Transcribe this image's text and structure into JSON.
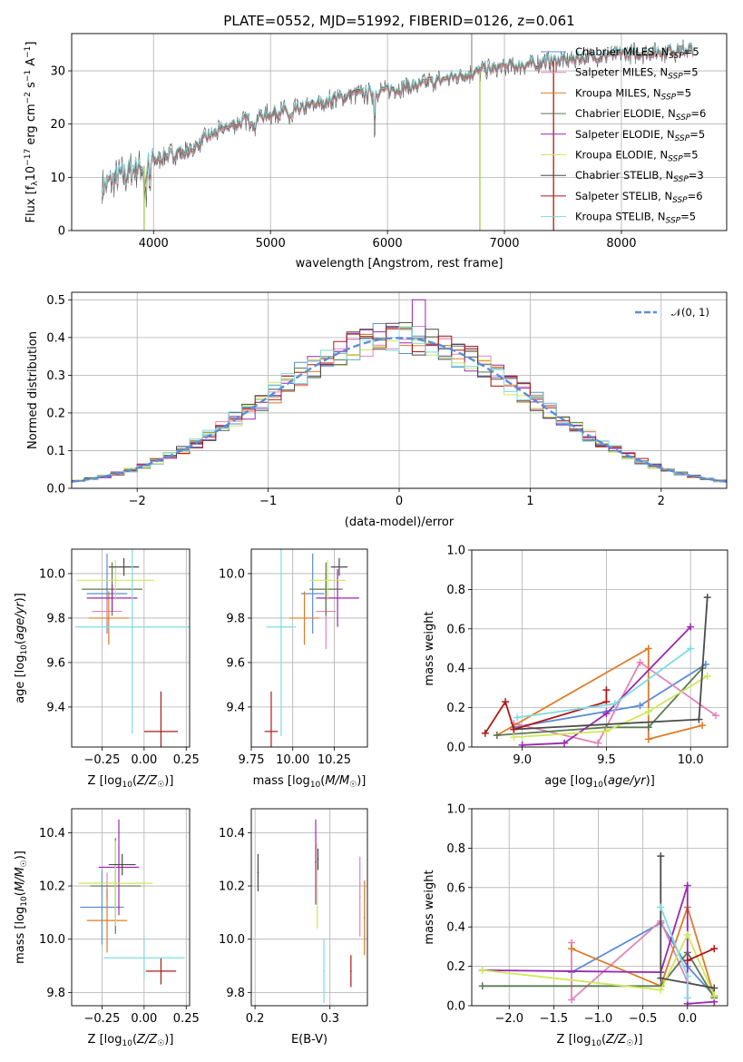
{
  "chart_data": [
    {
      "panel": "spectrum",
      "type": "line",
      "title": "PLATE=0552, MJD=51992, FIBERID=0126, z=0.061",
      "xlabel": "wavelength [Angstrom, rest frame]",
      "ylabel": "Flux [f_λ10^-17 erg cm^-2 s^-1 A^-1]",
      "xlim": [
        3300,
        8900
      ],
      "ylim": [
        0,
        37
      ],
      "xticks": [
        4000,
        5000,
        6000,
        7000,
        8000
      ],
      "yticks": [
        0,
        10,
        20,
        30
      ],
      "legend_position": "lower-right",
      "legend": [
        {
          "label": "Chabrier MILES, N",
          "sub": "SSP",
          "tail": "=5",
          "color": "#5b8dd6"
        },
        {
          "label": "Salpeter MILES, N",
          "sub": "SSP",
          "tail": "=5",
          "color": "#e383b9"
        },
        {
          "label": "Kroupa MILES, N",
          "sub": "SSP",
          "tail": "=5",
          "color": "#df7b27"
        },
        {
          "label": "Chabrier ELODIE, N",
          "sub": "SSP",
          "tail": "=6",
          "color": "#5a7a52"
        },
        {
          "label": "Salpeter ELODIE, N",
          "sub": "SSP",
          "tail": "=5",
          "color": "#9b27b3"
        },
        {
          "label": "Kroupa ELODIE, N",
          "sub": "SSP",
          "tail": "=5",
          "color": "#cfe85a"
        },
        {
          "label": "Chabrier STELIB, N",
          "sub": "SSP",
          "tail": "=3",
          "color": "#4a4a4a"
        },
        {
          "label": "Salpeter STELIB, N",
          "sub": "SSP",
          "tail": "=6",
          "color": "#b01818"
        },
        {
          "label": "Kroupa STELIB, N",
          "sub": "SSP",
          "tail": "=5",
          "color": "#7fdbe0"
        }
      ],
      "continuum": [
        [
          3560,
          8
        ],
        [
          3700,
          10
        ],
        [
          3900,
          12
        ],
        [
          4100,
          14
        ],
        [
          4300,
          15
        ],
        [
          4500,
          18
        ],
        [
          4700,
          20
        ],
        [
          5000,
          22
        ],
        [
          5300,
          23
        ],
        [
          5600,
          25
        ],
        [
          5900,
          26
        ],
        [
          6200,
          27
        ],
        [
          6500,
          28.5
        ],
        [
          6800,
          30
        ],
        [
          7100,
          31
        ],
        [
          7500,
          32
        ],
        [
          7900,
          33
        ],
        [
          8300,
          33.5
        ],
        [
          8600,
          34
        ]
      ],
      "spikes": [
        {
          "x": 3920,
          "y": 0,
          "color": "#a6c94a"
        },
        {
          "x": 6790,
          "y": 0,
          "color": "#a6c94a"
        },
        {
          "x": 7420,
          "y": 0,
          "color": "#b01818"
        },
        {
          "x": 6720,
          "y": 37,
          "color": "#9a9a9a"
        }
      ]
    },
    {
      "panel": "residuals",
      "type": "histogram",
      "xlabel": "(data-model)/error",
      "ylabel": "Normed distribution",
      "xlim": [
        -2.5,
        2.5
      ],
      "ylim": [
        0,
        0.52
      ],
      "xticks": [
        -2,
        -1,
        0,
        1,
        2
      ],
      "yticks": [
        0.0,
        0.1,
        0.2,
        0.3,
        0.4,
        0.5
      ],
      "gaussian_label": "𝒩(0, 1)",
      "gaussian_color": "#5b8dd6",
      "bin_width": 0.1,
      "max_bin": 0.5
    },
    {
      "panel": "age-vs-Z",
      "type": "errorbar",
      "xlabel": "Z [log10(Z/Z☉)]",
      "ylabel": "age [log10(age/yr)]",
      "xlim": [
        -0.43,
        0.27
      ],
      "ylim": [
        9.22,
        10.11
      ],
      "xticks": [
        -0.25,
        0.0,
        0.25
      ],
      "yticks": [
        9.4,
        9.6,
        9.8,
        10.0
      ],
      "points": [
        {
          "x": -0.22,
          "xerr": 0.12,
          "y": 9.91,
          "yerr": 0.18,
          "color": "#5b8dd6"
        },
        {
          "x": -0.22,
          "xerr": 0.09,
          "y": 9.83,
          "yerr": 0.05,
          "color": "#e383b9"
        },
        {
          "x": -0.21,
          "xerr": 0.12,
          "y": 9.8,
          "yerr": 0.12,
          "color": "#df7b27"
        },
        {
          "x": -0.19,
          "xerr": 0.18,
          "y": 9.93,
          "yerr": 0.12,
          "color": "#5a7a52"
        },
        {
          "x": -0.19,
          "xerr": 0.15,
          "y": 9.89,
          "yerr": 0.06,
          "color": "#9b27b3"
        },
        {
          "x": -0.17,
          "xerr": 0.23,
          "y": 9.97,
          "yerr": 0.09,
          "color": "#cfe85a"
        },
        {
          "x": -0.12,
          "xerr": 0.09,
          "y": 10.03,
          "yerr": 0.04,
          "color": "#4a4a4a"
        },
        {
          "x": 0.1,
          "xerr": 0.1,
          "y": 9.29,
          "yerr": 0.18,
          "color": "#b01818"
        },
        {
          "x": -0.07,
          "xerr": 0.34,
          "y": 9.76,
          "yerr": 0.48,
          "color": "#7fdbe0"
        }
      ]
    },
    {
      "panel": "age-vs-mass",
      "type": "errorbar",
      "xlabel": "mass [log10(M/M☉)]",
      "ylabel": "",
      "xlim": [
        9.75,
        10.45
      ],
      "ylim": [
        9.22,
        10.11
      ],
      "xticks": [
        9.75,
        10.0,
        10.25
      ],
      "yticks": [
        9.4,
        9.6,
        9.8,
        10.0
      ],
      "points": [
        {
          "x": 10.12,
          "xerr": 0.07,
          "y": 9.91,
          "yerr": 0.18,
          "color": "#5b8dd6"
        },
        {
          "x": 10.2,
          "xerr": 0.06,
          "y": 9.83,
          "yerr": 0.17,
          "color": "#e383b9"
        },
        {
          "x": 10.07,
          "xerr": 0.09,
          "y": 9.8,
          "yerr": 0.12,
          "color": "#df7b27"
        },
        {
          "x": 10.2,
          "xerr": 0.1,
          "y": 9.93,
          "yerr": 0.12,
          "color": "#5a7a52"
        },
        {
          "x": 10.27,
          "xerr": 0.13,
          "y": 9.89,
          "yerr": 0.13,
          "color": "#9b27b3"
        },
        {
          "x": 10.21,
          "xerr": 0.11,
          "y": 9.97,
          "yerr": 0.09,
          "color": "#cfe85a"
        },
        {
          "x": 10.28,
          "xerr": 0.05,
          "y": 10.03,
          "yerr": 0.04,
          "color": "#4a4a4a"
        },
        {
          "x": 9.87,
          "xerr": 0.04,
          "y": 9.29,
          "yerr": 0.18,
          "color": "#b01818"
        },
        {
          "x": 9.93,
          "xerr": 0.09,
          "y": 9.76,
          "yerr": 0.49,
          "color": "#7fdbe0"
        }
      ]
    },
    {
      "panel": "weight-vs-age",
      "type": "line",
      "xlabel": "age [log10(age/yr)]",
      "ylabel": "mass weight",
      "xlim": [
        8.7,
        10.22
      ],
      "ylim": [
        0,
        1.0
      ],
      "xticks": [
        9.0,
        9.5,
        10.0
      ],
      "yticks": [
        0.0,
        0.2,
        0.4,
        0.6,
        0.8,
        1.0
      ],
      "series": [
        {
          "color": "#5b8dd6",
          "pts": [
            [
              8.95,
              0.1
            ],
            [
              9.5,
              0.18
            ],
            [
              9.7,
              0.21
            ],
            [
              10.09,
              0.42
            ]
          ]
        },
        {
          "color": "#e383b9",
          "pts": [
            [
              8.95,
              0.12
            ],
            [
              9.45,
              0.02
            ],
            [
              9.7,
              0.43
            ],
            [
              10.15,
              0.16
            ]
          ]
        },
        {
          "color": "#df7b27",
          "pts": [
            [
              8.85,
              0.06
            ],
            [
              9.75,
              0.5
            ],
            [
              9.75,
              0.04
            ],
            [
              10.07,
              0.11
            ]
          ]
        },
        {
          "color": "#5a7a52",
          "pts": [
            [
              8.85,
              0.06
            ],
            [
              9.5,
              0.1
            ],
            [
              9.75,
              0.1
            ],
            [
              10.07,
              0.4
            ]
          ]
        },
        {
          "color": "#9b27b3",
          "pts": [
            [
              9.0,
              0.01
            ],
            [
              9.25,
              0.02
            ],
            [
              9.5,
              0.17
            ],
            [
              10.0,
              0.61
            ]
          ]
        },
        {
          "color": "#cfe85a",
          "pts": [
            [
              8.95,
              0.05
            ],
            [
              9.5,
              0.08
            ],
            [
              9.75,
              0.18
            ],
            [
              10.1,
              0.36
            ]
          ]
        },
        {
          "color": "#4a4a4a",
          "pts": [
            [
              8.95,
              0.09
            ],
            [
              10.05,
              0.14
            ],
            [
              10.1,
              0.76
            ]
          ]
        },
        {
          "color": "#b01818",
          "pts": [
            [
              8.78,
              0.07
            ],
            [
              8.9,
              0.23
            ],
            [
              8.95,
              0.09
            ],
            [
              9.5,
              0.23
            ],
            [
              9.5,
              0.29
            ]
          ]
        },
        {
          "color": "#7fdbe0",
          "pts": [
            [
              8.97,
              0.15
            ],
            [
              9.55,
              0.22
            ],
            [
              10.0,
              0.5
            ]
          ]
        }
      ]
    },
    {
      "panel": "mass-vs-Z",
      "type": "errorbar",
      "xlabel": "Z [log10(Z/Z☉)]",
      "ylabel": "mass [log10(M/M☉)]",
      "xlim": [
        -0.43,
        0.27
      ],
      "ylim": [
        9.75,
        10.49
      ],
      "xticks": [
        -0.25,
        0.0,
        0.25
      ],
      "yticks": [
        9.8,
        10.0,
        10.2,
        10.4
      ],
      "points": [
        {
          "x": -0.25,
          "xerr": 0.13,
          "y": 10.12,
          "yerr": 0.14,
          "color": "#5b8dd6"
        },
        {
          "x": -0.22,
          "xerr": 0.08,
          "y": 10.2,
          "yerr": 0.05,
          "color": "#e383b9"
        },
        {
          "x": -0.22,
          "xerr": 0.12,
          "y": 10.07,
          "yerr": 0.12,
          "color": "#df7b27"
        },
        {
          "x": -0.17,
          "xerr": 0.15,
          "y": 10.2,
          "yerr": 0.18,
          "color": "#5a7a52"
        },
        {
          "x": -0.15,
          "xerr": 0.12,
          "y": 10.27,
          "yerr": 0.18,
          "color": "#9b27b3"
        },
        {
          "x": -0.17,
          "xerr": 0.22,
          "y": 10.21,
          "yerr": 0.16,
          "color": "#cfe85a"
        },
        {
          "x": -0.13,
          "xerr": 0.08,
          "y": 10.28,
          "yerr": 0.04,
          "color": "#4a4a4a"
        },
        {
          "x": 0.1,
          "xerr": 0.09,
          "y": 9.88,
          "yerr": 0.05,
          "color": "#b01818"
        },
        {
          "x": 0.0,
          "xerr": 0.24,
          "y": 9.93,
          "yerr": 0.08,
          "color": "#7fdbe0"
        }
      ]
    },
    {
      "panel": "mass-vs-EBV",
      "type": "errorbar",
      "xlabel": "E(B-V)",
      "ylabel": "",
      "xlim": [
        0.195,
        0.35
      ],
      "ylim": [
        9.75,
        10.49
      ],
      "xticks": [
        0.2,
        0.3
      ],
      "yticks": [
        9.8,
        10.0,
        10.2,
        10.4
      ],
      "points": [
        {
          "x": 0.204,
          "xerr": 0.001,
          "y": 10.25,
          "yerr": 0.07,
          "color": "#4a4a4a"
        },
        {
          "x": 0.281,
          "xerr": 0.001,
          "y": 10.29,
          "yerr": 0.16,
          "color": "#9b27b3"
        },
        {
          "x": 0.283,
          "xerr": 0.001,
          "y": 10.2,
          "yerr": 0.16,
          "color": "#cfe85a"
        },
        {
          "x": 0.284,
          "xerr": 0.001,
          "y": 10.3,
          "yerr": 0.04,
          "color": "#4a4a4a"
        },
        {
          "x": 0.292,
          "xerr": 0.001,
          "y": 9.88,
          "yerr": 0.12,
          "color": "#7fdbe0"
        },
        {
          "x": 0.328,
          "xerr": 0.001,
          "y": 9.88,
          "yerr": 0.06,
          "color": "#b01818"
        },
        {
          "x": 0.34,
          "xerr": 0.001,
          "y": 10.16,
          "yerr": 0.15,
          "color": "#e383b9"
        },
        {
          "x": 0.346,
          "xerr": 0.001,
          "y": 10.08,
          "yerr": 0.14,
          "color": "#df7b27"
        }
      ]
    },
    {
      "panel": "weight-vs-Z",
      "type": "line",
      "xlabel": "Z [log10(Z/Z☉)]",
      "ylabel": "mass weight",
      "xlim": [
        -2.42,
        0.45
      ],
      "ylim": [
        0,
        1.0
      ],
      "xticks": [
        -2.0,
        -1.5,
        -1.0,
        -0.5,
        0.0
      ],
      "yticks": [
        0.0,
        0.2,
        0.4,
        0.6,
        0.8,
        1.0
      ],
      "series": [
        {
          "color": "#5b8dd6",
          "pts": [
            [
              -1.3,
              0.17
            ],
            [
              -0.3,
              0.42
            ],
            [
              0.0,
              0.2
            ],
            [
              0.3,
              0.05
            ]
          ]
        },
        {
          "color": "#e383b9",
          "pts": [
            [
              -1.3,
              0.32
            ],
            [
              -1.3,
              0.03
            ],
            [
              -0.3,
              0.43
            ],
            [
              0.0,
              0.12
            ]
          ]
        },
        {
          "color": "#df7b27",
          "pts": [
            [
              -1.3,
              0.29
            ],
            [
              -0.3,
              0.1
            ],
            [
              0.0,
              0.5
            ],
            [
              0.3,
              0.05
            ]
          ]
        },
        {
          "color": "#5a7a52",
          "pts": [
            [
              -2.3,
              0.1
            ],
            [
              -0.3,
              0.1
            ],
            [
              0.0,
              0.27
            ],
            [
              0.3,
              0.04
            ]
          ]
        },
        {
          "color": "#9b27b3",
          "pts": [
            [
              -2.3,
              0.18
            ],
            [
              -0.3,
              0.17
            ],
            [
              0.0,
              0.61
            ],
            [
              0.0,
              0.01
            ],
            [
              0.3,
              0.02
            ]
          ]
        },
        {
          "color": "#cfe85a",
          "pts": [
            [
              -2.3,
              0.18
            ],
            [
              -0.3,
              0.08
            ],
            [
              0.0,
              0.36
            ],
            [
              0.3,
              0.05
            ]
          ]
        },
        {
          "color": "#4a4a4a",
          "pts": [
            [
              -0.3,
              0.76
            ],
            [
              -0.3,
              0.14
            ],
            [
              0.3,
              0.09
            ]
          ]
        },
        {
          "color": "#b01818",
          "pts": [
            [
              0.0,
              0.23
            ],
            [
              0.3,
              0.29
            ]
          ]
        },
        {
          "color": "#7fdbe0",
          "pts": [
            [
              -0.3,
              0.5
            ],
            [
              0.0,
              0.15
            ],
            [
              0.0,
              0.04
            ]
          ]
        }
      ]
    }
  ]
}
